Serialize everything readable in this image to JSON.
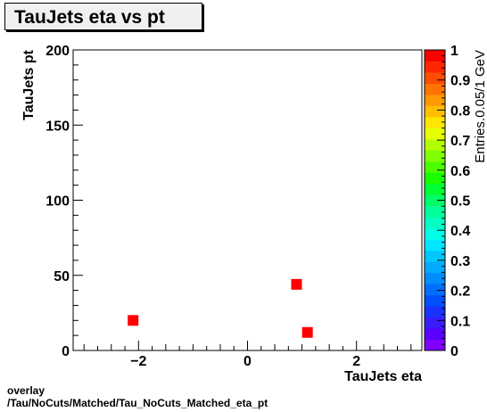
{
  "chart_data": {
    "type": "heatmap",
    "title": "TauJets eta vs pt",
    "xlabel": "TauJets eta",
    "ylabel": "TauJets pt",
    "zlabel": "Entries.0.05/1 GeV",
    "xlim": [
      -3.2,
      3.2
    ],
    "ylim": [
      0,
      200
    ],
    "zlim": [
      0,
      1
    ],
    "x_ticks": [
      -2,
      0,
      2
    ],
    "x_tick_labels": [
      "−2",
      "0",
      "2"
    ],
    "y_ticks": [
      0,
      50,
      100,
      150,
      200
    ],
    "z_ticks": [
      0,
      0.1,
      0.2,
      0.3,
      0.4,
      0.5,
      0.6,
      0.7,
      0.8,
      0.9,
      1
    ],
    "z_tick_labels": [
      "0",
      "0.1",
      "0.2",
      "0.3",
      "0.4",
      "0.5",
      "0.6",
      "0.7",
      "0.8",
      "0.9",
      "1"
    ],
    "points": [
      {
        "x": -2.1,
        "y": 20,
        "z": 1
      },
      {
        "x": 0.9,
        "y": 44,
        "z": 1
      },
      {
        "x": 1.1,
        "y": 12,
        "z": 1
      }
    ],
    "palette": [
      "#7f00ff",
      "#5a00ff",
      "#3a1cff",
      "#1a32ff",
      "#0050ff",
      "#006eff",
      "#008cff",
      "#00aaff",
      "#00c8ff",
      "#00e6ff",
      "#00ffe6",
      "#00ffc0",
      "#00ff99",
      "#00ff66",
      "#00ff33",
      "#19ff00",
      "#4cff00",
      "#80ff00",
      "#b3ff00",
      "#e6ff00",
      "#ffe600",
      "#ffbf00",
      "#ff9900",
      "#ff7300",
      "#ff4c00",
      "#ff2600",
      "#ff0000"
    ],
    "grid": false
  },
  "footer": {
    "line1": "overlay",
    "line2": "/Tau/NoCuts/Matched/Tau_NoCuts_Matched_eta_pt"
  }
}
